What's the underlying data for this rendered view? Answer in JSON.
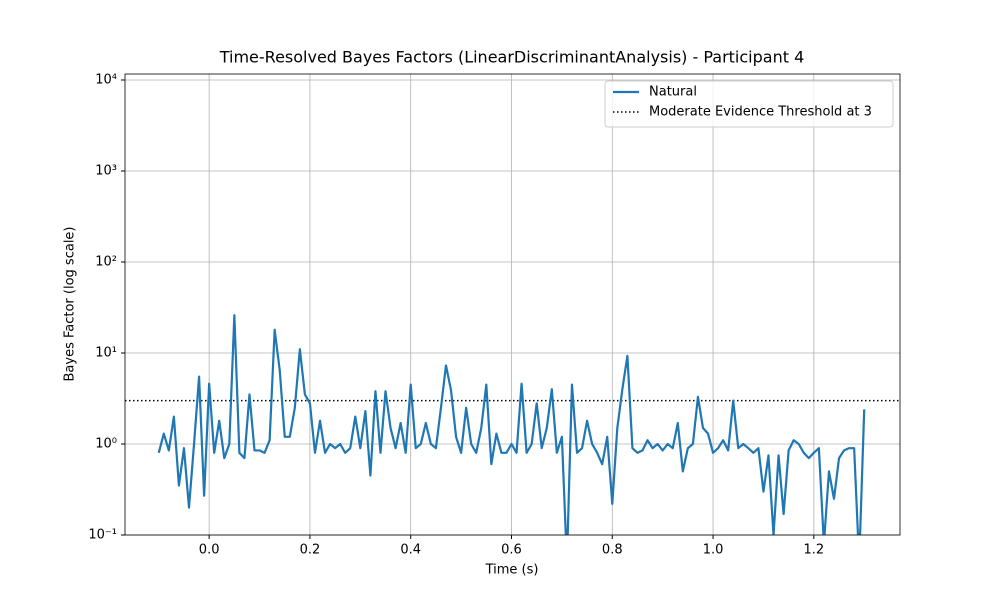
{
  "chart_data": {
    "type": "line",
    "title": "Time-Resolved Bayes Factors (LinearDiscriminantAnalysis) - Participant 4",
    "x_label": "Time (s)",
    "y_label": "Bayes Factor (log scale)",
    "x": [
      -0.1,
      -0.09,
      -0.08,
      -0.07,
      -0.06,
      -0.05,
      -0.04,
      -0.03,
      -0.02,
      -0.01,
      0,
      0.01,
      0.02,
      0.03,
      0.04,
      0.05,
      0.06,
      0.07,
      0.08,
      0.09,
      0.1,
      0.11,
      0.12,
      0.13,
      0.14,
      0.15,
      0.16,
      0.17,
      0.18,
      0.19,
      0.2,
      0.21,
      0.22,
      0.23,
      0.24,
      0.25,
      0.26,
      0.27,
      0.28,
      0.29,
      0.3,
      0.31,
      0.32,
      0.33,
      0.34,
      0.35,
      0.36,
      0.37,
      0.38,
      0.39,
      0.4,
      0.41,
      0.42,
      0.43,
      0.44,
      0.45,
      0.46,
      0.47,
      0.48,
      0.49,
      0.5,
      0.51,
      0.52,
      0.53,
      0.54,
      0.55,
      0.56,
      0.57,
      0.58,
      0.59,
      0.6,
      0.61,
      0.62,
      0.63,
      0.64,
      0.65,
      0.66,
      0.67,
      0.68,
      0.69,
      0.7,
      0.71,
      0.72,
      0.73,
      0.74,
      0.75,
      0.76,
      0.77,
      0.78,
      0.79,
      0.8,
      0.81,
      0.82,
      0.83,
      0.84,
      0.85,
      0.86,
      0.87,
      0.88,
      0.89,
      0.9,
      0.91,
      0.92,
      0.93,
      0.94,
      0.95,
      0.96,
      0.97,
      0.98,
      0.99,
      1,
      1.01,
      1.02,
      1.03,
      1.04,
      1.05,
      1.06,
      1.07,
      1.08,
      1.09,
      1.1,
      1.11,
      1.12,
      1.13,
      1.14,
      1.15,
      1.16,
      1.17,
      1.18,
      1.19,
      1.2,
      1.21,
      1.22,
      1.23,
      1.24,
      1.25,
      1.26,
      1.27,
      1.28,
      1.29,
      1.3
    ],
    "series": [
      {
        "name": "Natural",
        "color": "#1f77b4",
        "values": [
          0.8,
          1.3,
          0.85,
          2.0,
          0.35,
          0.9,
          0.2,
          1.0,
          5.5,
          0.27,
          4.6,
          0.8,
          1.8,
          0.7,
          1.0,
          26,
          0.8,
          0.7,
          3.5,
          0.85,
          0.85,
          0.8,
          1.1,
          18,
          6.5,
          1.2,
          1.2,
          2.5,
          11,
          3.5,
          2.8,
          0.8,
          1.8,
          0.8,
          1.0,
          0.9,
          1.0,
          0.8,
          0.9,
          2.0,
          0.9,
          2.3,
          0.45,
          3.8,
          0.8,
          3.8,
          1.5,
          0.9,
          1.7,
          0.8,
          4.5,
          0.9,
          1.0,
          1.7,
          1.0,
          0.9,
          2.5,
          7.3,
          3.9,
          1.2,
          0.8,
          2.5,
          1.0,
          0.8,
          1.5,
          4.5,
          0.6,
          1.3,
          0.8,
          0.8,
          1.0,
          0.8,
          4.6,
          0.8,
          1.0,
          2.8,
          0.9,
          1.5,
          4.0,
          0.8,
          1.2,
          0.05,
          4.5,
          0.8,
          0.9,
          1.8,
          1.0,
          0.8,
          0.6,
          1.2,
          0.22,
          1.5,
          4.0,
          9.3,
          0.9,
          0.8,
          0.85,
          1.1,
          0.9,
          1.0,
          0.85,
          1.0,
          0.9,
          1.7,
          0.5,
          0.9,
          1.0,
          3.3,
          1.5,
          1.3,
          0.8,
          0.9,
          1.1,
          0.85,
          3.0,
          0.9,
          1.0,
          0.9,
          0.8,
          0.9,
          0.3,
          0.75,
          0.1,
          0.75,
          0.17,
          0.85,
          1.1,
          1.0,
          0.8,
          0.7,
          0.8,
          0.9,
          0.08,
          0.5,
          0.25,
          0.7,
          0.85,
          0.9,
          0.9,
          0.05,
          2.4
        ]
      }
    ],
    "threshold": {
      "name": "Moderate Evidence Threshold at 3",
      "value": 3,
      "color": "#000000"
    },
    "xlim": [
      -0.167,
      1.371
    ],
    "ylim": [
      0.1,
      11640
    ],
    "log_y": true,
    "grid": true,
    "legend": "upper right",
    "xticks": [
      {
        "value": 0,
        "label": "0.0"
      },
      0.2,
      0.4,
      0.6,
      0.8,
      {
        "value": 1,
        "label": "1.0"
      },
      1.2
    ],
    "yticks": [
      {
        "value": 0.1,
        "label": "10⁻¹"
      },
      {
        "value": 1,
        "label": "10⁰"
      },
      {
        "value": 10,
        "label": "10¹"
      },
      {
        "value": 100,
        "label": "10²"
      },
      {
        "value": 1000,
        "label": "10³"
      },
      {
        "value": 10000,
        "label": "10⁴"
      }
    ]
  }
}
